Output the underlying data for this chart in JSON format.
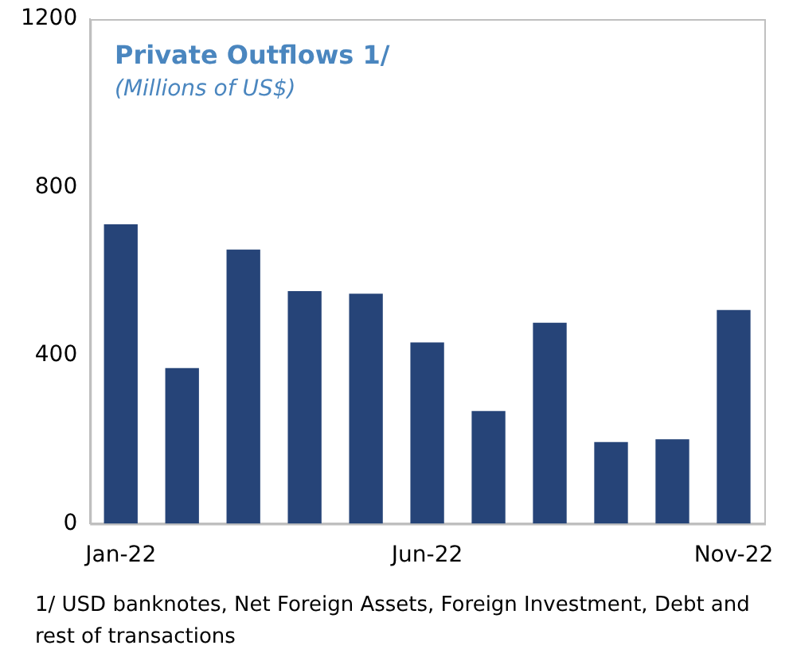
{
  "chart_data": {
    "type": "bar",
    "title": "Private Outflows 1/",
    "subtitle": "(Millions of US$)",
    "categories": [
      "Jan-22",
      null,
      null,
      null,
      null,
      "Jun-22",
      null,
      null,
      null,
      null,
      "Nov-22"
    ],
    "values": [
      712,
      370,
      652,
      553,
      547,
      431,
      268,
      478,
      194,
      201,
      508
    ],
    "color": "#264478",
    "ylim": [
      0,
      1200
    ],
    "yticks": [
      0,
      400,
      800,
      1200
    ],
    "grid": false,
    "annotations": [
      "1/ USD banknotes, Net Foreign Assets, Foreign Investment, Debt and rest of transactions"
    ]
  }
}
